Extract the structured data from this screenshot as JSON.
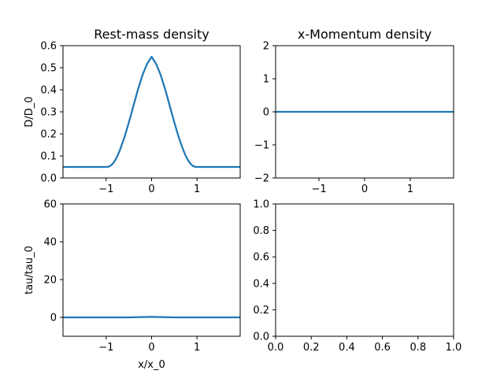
{
  "colors": {
    "series": "#1f77b4"
  },
  "chart_data": [
    {
      "type": "line",
      "title": "Rest-mass density",
      "xlabel": "",
      "ylabel": "D/D_0",
      "xlim": [
        -1.95,
        1.95
      ],
      "ylim": [
        0,
        0.6
      ],
      "xticks": [
        -1,
        0,
        1
      ],
      "xtick_labels": [
        "−1",
        "0",
        "1"
      ],
      "yticks": [
        0,
        0.1,
        0.2,
        0.3,
        0.4,
        0.5,
        0.6
      ],
      "ytick_labels": [
        "0.0",
        "0.1",
        "0.2",
        "0.3",
        "0.4",
        "0.5",
        "0.6"
      ],
      "series": [
        {
          "x": [
            -1.95,
            -1.0,
            -0.95,
            -0.9,
            -0.85,
            -0.8,
            -0.75,
            -0.7,
            -0.6,
            -0.5,
            -0.4,
            -0.3,
            -0.2,
            -0.1,
            0.0,
            0.1,
            0.2,
            0.3,
            0.4,
            0.5,
            0.6,
            0.7,
            0.75,
            0.8,
            0.85,
            0.9,
            0.95,
            1.0,
            1.95
          ],
          "y": [
            0.05,
            0.05,
            0.051,
            0.056,
            0.066,
            0.081,
            0.101,
            0.125,
            0.183,
            0.252,
            0.327,
            0.401,
            0.467,
            0.517,
            0.55,
            0.517,
            0.467,
            0.401,
            0.327,
            0.252,
            0.183,
            0.125,
            0.101,
            0.081,
            0.066,
            0.056,
            0.051,
            0.05,
            0.05
          ]
        }
      ]
    },
    {
      "type": "line",
      "title": "x-Momentum density",
      "xlabel": "",
      "ylabel": "",
      "xlim": [
        -1.95,
        1.95
      ],
      "ylim": [
        -2,
        2
      ],
      "xticks": [
        -1,
        0,
        1
      ],
      "xtick_labels": [
        "−1",
        "0",
        "1"
      ],
      "yticks": [
        -2,
        -1,
        0,
        1,
        2
      ],
      "ytick_labels": [
        "−2",
        "−1",
        "0",
        "1",
        "2"
      ],
      "series": [
        {
          "x": [
            -1.95,
            1.95
          ],
          "y": [
            0,
            0
          ]
        }
      ]
    },
    {
      "type": "line",
      "title": "",
      "xlabel": "x/x_0",
      "ylabel": "tau/tau_0",
      "xlim": [
        -1.95,
        1.95
      ],
      "ylim": [
        -10,
        60
      ],
      "xticks": [
        -1,
        0,
        1
      ],
      "xtick_labels": [
        "−1",
        "0",
        "1"
      ],
      "yticks": [
        0,
        20,
        40,
        60
      ],
      "ytick_labels": [
        "0",
        "20",
        "40",
        "60"
      ],
      "series": [
        {
          "x": [
            -1.95,
            -1.0,
            -0.5,
            -0.2,
            0.0,
            0.2,
            0.5,
            1.0,
            1.95
          ],
          "y": [
            0,
            0,
            0.02,
            0.15,
            0.25,
            0.15,
            0.02,
            0,
            0
          ]
        }
      ]
    },
    {
      "type": "line",
      "title": "",
      "xlabel": "",
      "ylabel": "",
      "xlim": [
        0,
        1
      ],
      "ylim": [
        0,
        1
      ],
      "xticks": [
        0,
        0.2,
        0.4,
        0.6,
        0.8,
        1.0
      ],
      "xtick_labels": [
        "0.0",
        "0.2",
        "0.4",
        "0.6",
        "0.8",
        "1.0"
      ],
      "yticks": [
        0,
        0.2,
        0.4,
        0.6,
        0.8,
        1.0
      ],
      "ytick_labels": [
        "0.0",
        "0.2",
        "0.4",
        "0.6",
        "0.8",
        "1.0"
      ],
      "series": []
    }
  ]
}
